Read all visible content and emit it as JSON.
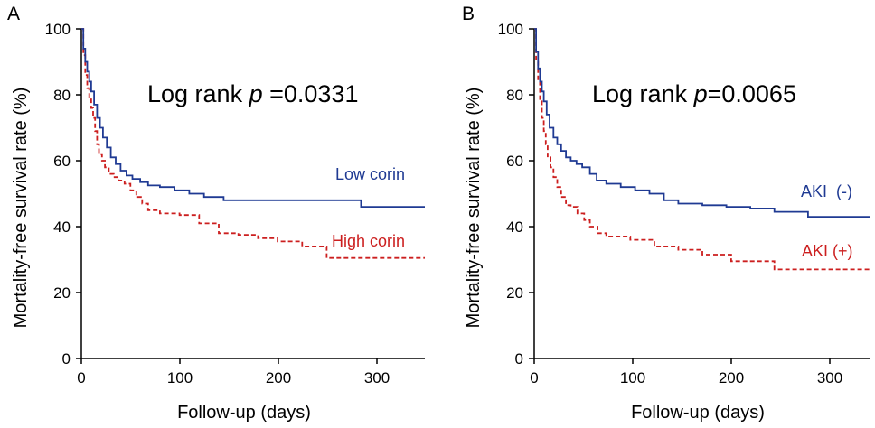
{
  "figure": {
    "panels": [
      {
        "label": "A"
      },
      {
        "label": "B"
      }
    ]
  },
  "chart_data": [
    {
      "panel": "A",
      "type": "line",
      "step": true,
      "title": "",
      "annotation": {
        "prefix": "Log rank ",
        "p_symbol": "p",
        "value": " =0.0331"
      },
      "xlabel": "Follow-up (days)",
      "ylabel": "Mortality-free survival rate (%)",
      "xlim": [
        0,
        350
      ],
      "ylim": [
        0,
        100
      ],
      "xticks": [
        0,
        100,
        200,
        300
      ],
      "yticks": [
        0,
        20,
        40,
        60,
        80,
        100
      ],
      "series": [
        {
          "name": "Low corin",
          "color": "#1f3a93",
          "dash": "solid",
          "x": [
            0,
            2,
            4,
            6,
            8,
            10,
            13,
            16,
            19,
            22,
            26,
            30,
            35,
            40,
            46,
            52,
            60,
            68,
            80,
            95,
            110,
            125,
            145,
            165,
            185,
            210,
            240,
            285,
            350
          ],
          "y": [
            100,
            94,
            90,
            87,
            84,
            81,
            77,
            73,
            70,
            67,
            64,
            61,
            59,
            57,
            55.5,
            54.5,
            53.5,
            52.5,
            52,
            51,
            50,
            49,
            48,
            48,
            48,
            48,
            48,
            46,
            46
          ]
        },
        {
          "name": "High corin",
          "color": "#cc1f1f",
          "dash": "dashed",
          "x": [
            0,
            2,
            4,
            6,
            8,
            10,
            12,
            14,
            16,
            18,
            21,
            24,
            28,
            33,
            38,
            44,
            50,
            56,
            62,
            68,
            80,
            100,
            120,
            140,
            160,
            180,
            200,
            225,
            250,
            350
          ],
          "y": [
            100,
            92,
            86,
            82,
            79,
            76,
            73,
            69,
            65,
            62,
            60,
            58,
            56,
            55,
            54,
            53,
            51,
            49,
            47,
            45,
            44,
            43.5,
            41,
            38,
            37.5,
            36.5,
            35.5,
            34,
            30.5,
            30.5
          ]
        }
      ]
    },
    {
      "panel": "B",
      "type": "line",
      "step": true,
      "title": "",
      "annotation": {
        "prefix": "Log rank ",
        "p_symbol": "p",
        "value": "=0.0065"
      },
      "xlabel": "Follow-up (days)",
      "ylabel": "Mortality-free survival rate (%)",
      "xlim": [
        0,
        350
      ],
      "ylim": [
        0,
        100
      ],
      "xticks": [
        0,
        100,
        200,
        300
      ],
      "yticks": [
        0,
        20,
        40,
        60,
        80,
        100
      ],
      "series": [
        {
          "name": "AKI  (-)",
          "color": "#1f3a93",
          "dash": "solid",
          "x": [
            0,
            2,
            4,
            6,
            8,
            10,
            13,
            16,
            20,
            24,
            28,
            33,
            38,
            44,
            50,
            58,
            65,
            75,
            90,
            105,
            120,
            135,
            150,
            175,
            200,
            225,
            250,
            285,
            350
          ],
          "y": [
            100,
            93,
            88,
            84,
            81,
            78,
            74,
            70,
            67,
            65,
            63,
            61,
            60,
            59,
            58,
            56,
            54,
            53,
            52,
            51,
            50,
            48,
            47,
            46.5,
            46,
            45.5,
            44.5,
            43,
            43
          ]
        },
        {
          "name": "AKI (+)",
          "color": "#cc1f1f",
          "dash": "dashed",
          "x": [
            0,
            2,
            4,
            6,
            8,
            10,
            12,
            14,
            17,
            20,
            24,
            28,
            33,
            38,
            45,
            52,
            58,
            66,
            75,
            100,
            125,
            150,
            175,
            205,
            250,
            350
          ],
          "y": [
            100,
            90,
            84,
            78,
            73,
            69,
            65,
            61,
            58,
            55,
            52,
            49,
            46.5,
            46,
            44,
            42,
            40,
            38,
            37,
            36,
            34,
            33,
            31.5,
            29.5,
            27,
            27
          ]
        }
      ]
    }
  ]
}
